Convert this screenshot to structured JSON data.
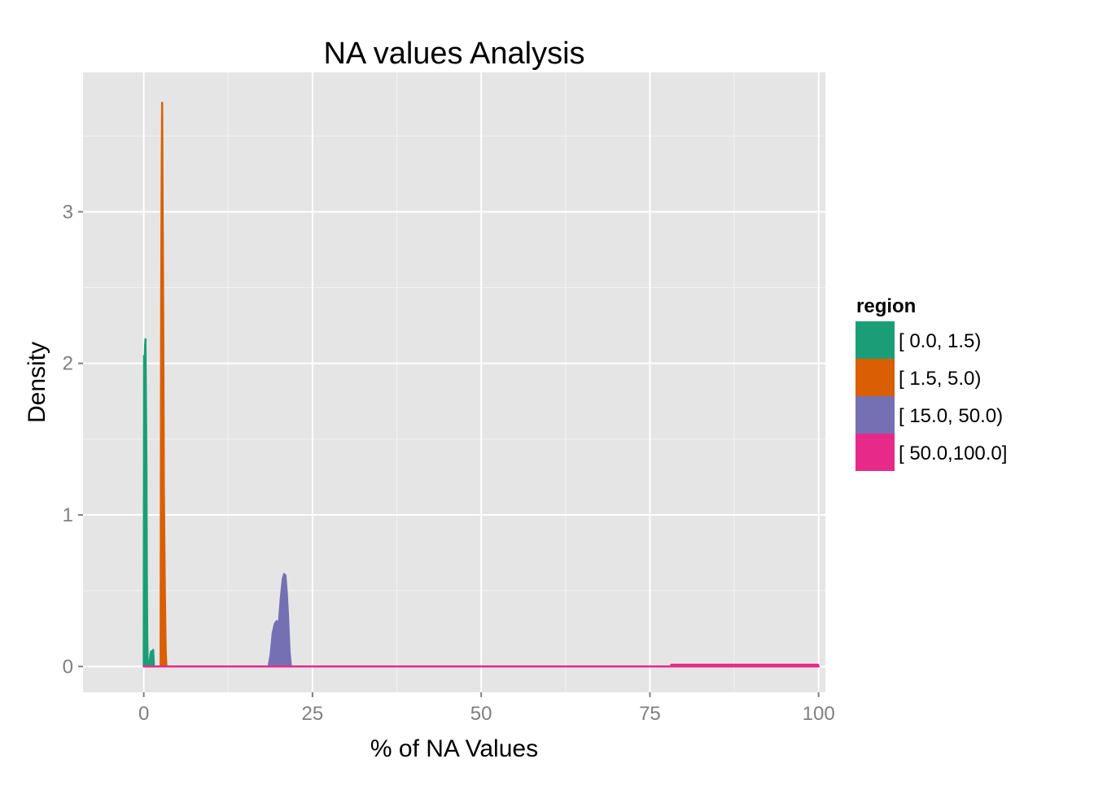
{
  "chart_data": {
    "type": "area",
    "title": "NA values Analysis",
    "xlabel": "% of NA Values",
    "ylabel": "Density",
    "xlim": [
      -9,
      101
    ],
    "ylim": [
      -0.17,
      3.92
    ],
    "x_ticks": [
      0,
      25,
      50,
      75,
      100
    ],
    "x_tick_labels": [
      "0",
      "25",
      "50",
      "75",
      "100"
    ],
    "y_ticks": [
      0,
      1,
      2,
      3
    ],
    "y_tick_labels": [
      "0",
      "1",
      "2",
      "3"
    ],
    "x_minor_ticks": [
      12.5,
      37.5,
      62.5,
      87.5
    ],
    "y_minor_ticks": [
      0.5,
      1.5,
      2.5,
      3.5
    ],
    "grid": true,
    "legend": {
      "title": "region",
      "position": "right"
    },
    "series": [
      {
        "name": "[  0.0,  1.5)",
        "color": "#1b9e77",
        "x": [
          0.0,
          0.05,
          0.1,
          0.18,
          0.25,
          0.32,
          0.4,
          0.46,
          0.52,
          0.58,
          0.65,
          0.72,
          0.8,
          0.9,
          1.0,
          1.1,
          1.2,
          1.3,
          1.4,
          1.5
        ],
        "y": [
          0,
          2.05,
          1.9,
          2.1,
          2.16,
          1.75,
          1.35,
          0.6,
          0.2,
          0.05,
          0.02,
          0.0,
          0.0,
          0.04,
          0.08,
          0.1,
          0.06,
          0.1,
          0.11,
          0
        ]
      },
      {
        "name": "[  1.5,  5.0)",
        "color": "#d95f02",
        "x": [
          2.5,
          2.58,
          2.65,
          2.72,
          2.78,
          2.83,
          2.88,
          2.93,
          2.98,
          3.03,
          3.1,
          3.18,
          3.25,
          3.35
        ],
        "y": [
          0,
          2.4,
          3.2,
          3.72,
          3.1,
          2.75,
          2.3,
          1.8,
          1.2,
          0.95,
          0.6,
          0.3,
          0.1,
          0
        ]
      },
      {
        "name": "[ 15.0, 50.0)",
        "color": "#7570b3",
        "x": [
          18.5,
          18.8,
          19.1,
          19.4,
          19.7,
          20.0,
          20.3,
          20.6,
          20.8,
          21.0,
          21.2,
          21.4,
          21.6,
          21.8
        ],
        "y": [
          0,
          0.08,
          0.22,
          0.28,
          0.3,
          0.27,
          0.45,
          0.58,
          0.61,
          0.6,
          0.48,
          0.32,
          0.1,
          0
        ]
      },
      {
        "name": "[ 50.0,100.0]",
        "color": "#e7298a",
        "x": [
          0,
          78,
          78.2,
          99.9,
          100
        ],
        "y": [
          0,
          0,
          0.012,
          0.012,
          0
        ]
      }
    ]
  }
}
